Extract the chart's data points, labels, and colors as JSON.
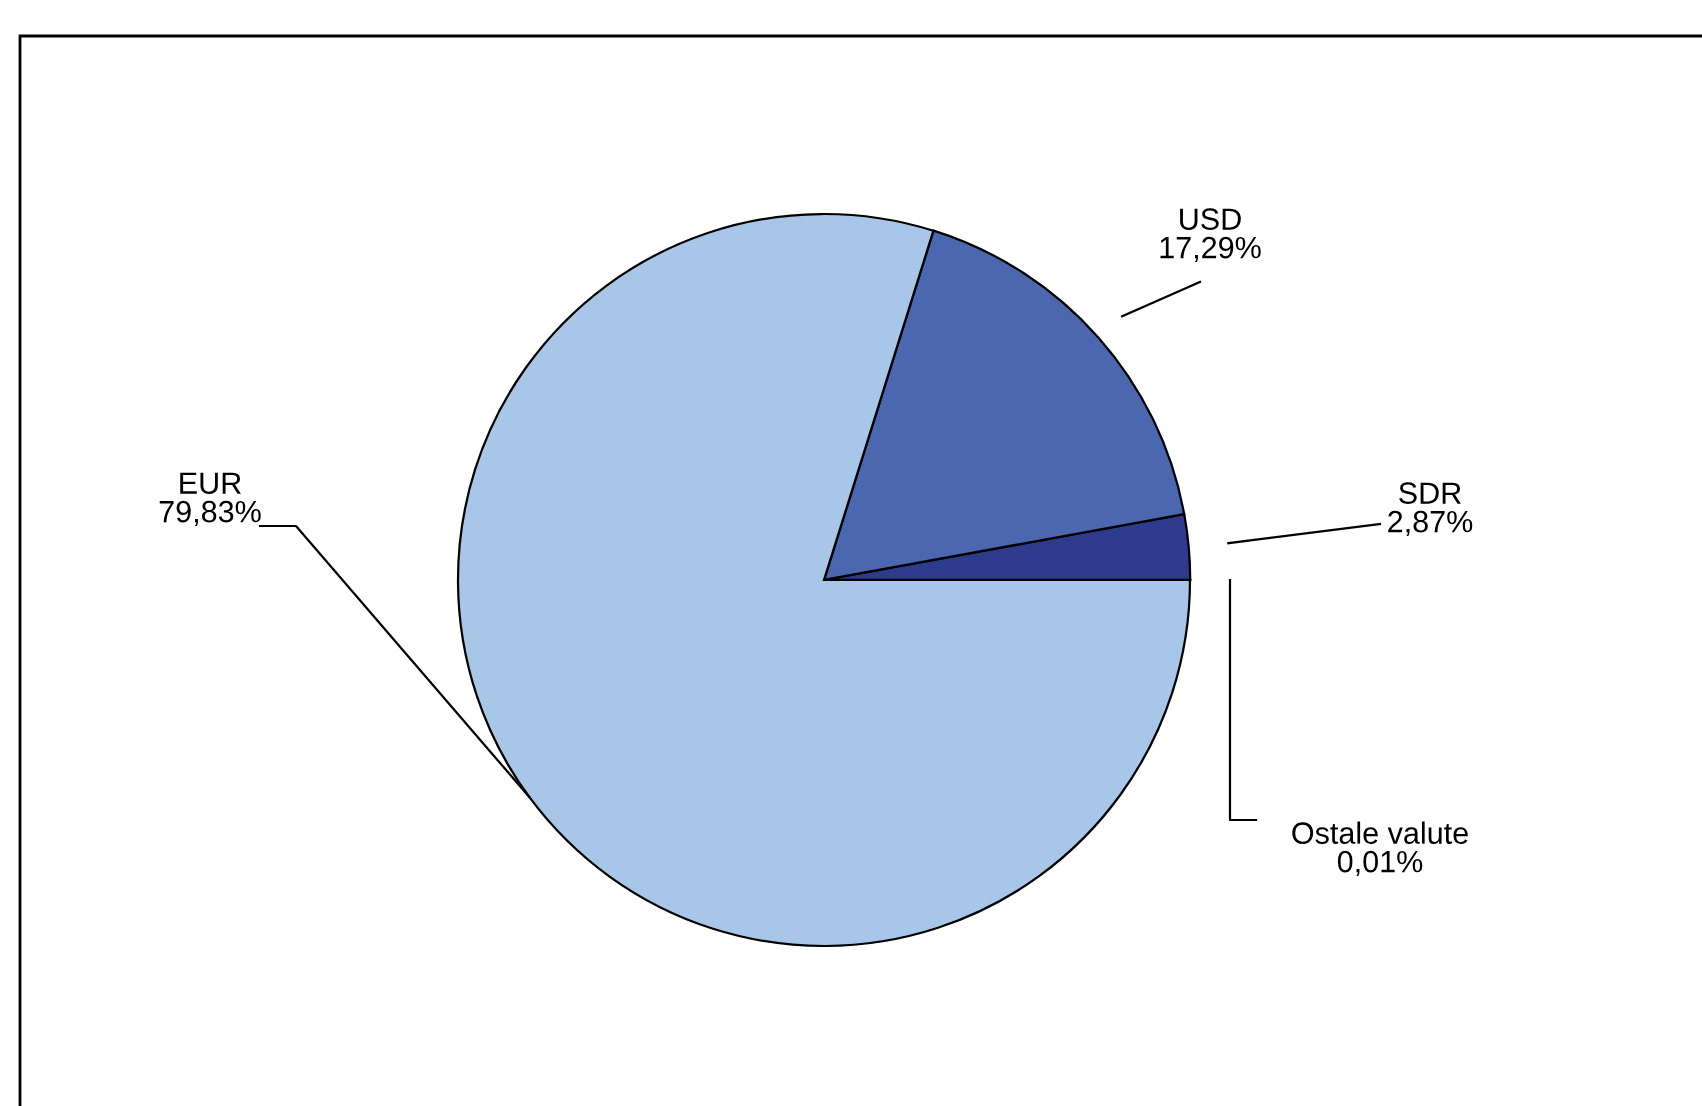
{
  "chart_data": {
    "type": "pie",
    "categories": [
      "Ostale valute",
      "SDR",
      "USD",
      "EUR"
    ],
    "values": [
      0.01,
      2.87,
      17.29,
      79.83
    ],
    "value_labels": [
      "0,01%",
      "2,87%",
      "17,29%",
      "79,83%"
    ],
    "colors": [
      "#1f2a6e",
      "#2e3a8c",
      "#4a67b0",
      "#a8c6e8"
    ],
    "legend": false
  }
}
